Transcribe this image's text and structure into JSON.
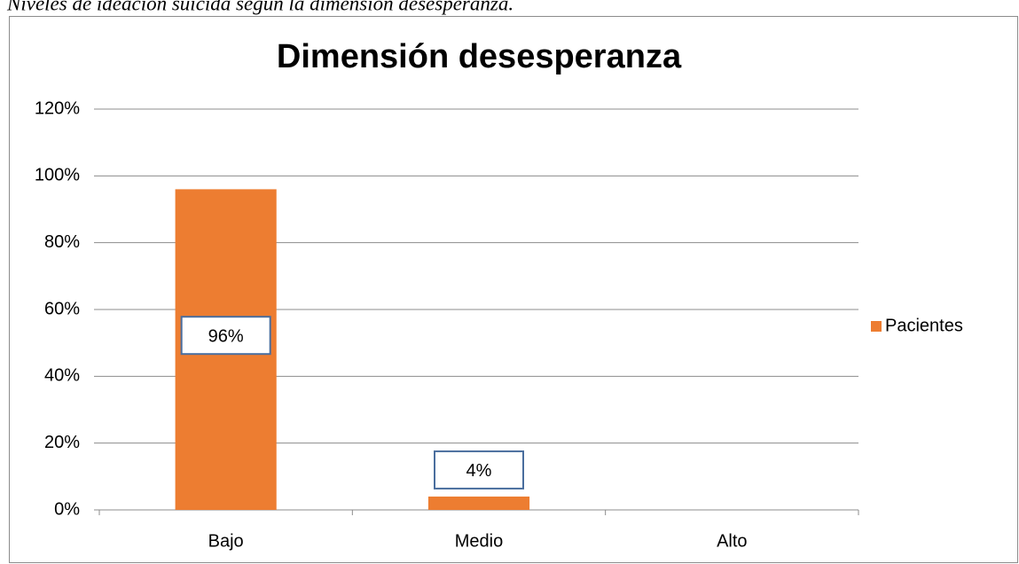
{
  "caption": "Niveles de ideación suicida según la dimensión desesperanza.",
  "chart_data": {
    "type": "bar",
    "title": "Dimensión desesperanza",
    "categories": [
      "Bajo",
      "Medio",
      "Alto"
    ],
    "series": [
      {
        "name": "Pacientes",
        "color": "#ed7d31",
        "values": [
          96,
          4,
          0
        ]
      }
    ],
    "value_labels": [
      "96%",
      "4%",
      null
    ],
    "ylim": [
      0,
      120
    ],
    "yticks": [
      {
        "value": 0,
        "label": "0%"
      },
      {
        "value": 20,
        "label": "20%"
      },
      {
        "value": 40,
        "label": "40%"
      },
      {
        "value": 60,
        "label": "60%"
      },
      {
        "value": 80,
        "label": "80%"
      },
      {
        "value": 100,
        "label": "100%"
      },
      {
        "value": 120,
        "label": "120%"
      }
    ],
    "grid": true,
    "legend": "right"
  }
}
